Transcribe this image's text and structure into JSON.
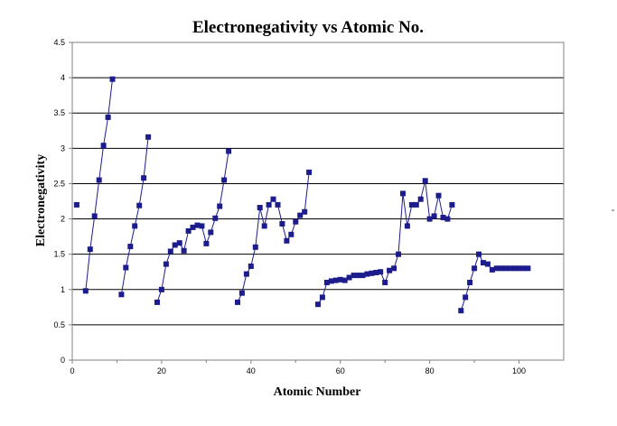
{
  "chart_data": {
    "type": "line",
    "title": "Electronegativity vs Atomic No.",
    "xlabel": "Atomic Number",
    "ylabel": "Electronegativity",
    "xlim": [
      0,
      110
    ],
    "ylim": [
      0,
      4.5
    ],
    "x_ticks": [
      0,
      20,
      40,
      60,
      80,
      100
    ],
    "y_ticks": [
      0,
      0.5,
      1,
      1.5,
      2,
      2.5,
      3,
      3.5,
      4,
      4.5
    ],
    "x_tick_labels": [
      "0",
      "20",
      "40",
      "60",
      "80",
      "100"
    ],
    "y_tick_labels": [
      "0",
      "0.5",
      "1",
      "1.5",
      "2",
      "2.5",
      "3",
      "3.5",
      "4",
      "4.5"
    ],
    "grid": "horizontal",
    "legend": "none",
    "colors": {
      "series": "#1c1c8c",
      "grid": "#000000",
      "axis": "#808080"
    },
    "series": [
      {
        "segments": [
          [
            [
              1,
              2.2
            ]
          ],
          [
            [
              3,
              0.98
            ],
            [
              4,
              1.57
            ],
            [
              5,
              2.04
            ],
            [
              6,
              2.55
            ],
            [
              7,
              3.04
            ],
            [
              8,
              3.44
            ],
            [
              9,
              3.98
            ]
          ],
          [
            [
              11,
              0.93
            ],
            [
              12,
              1.31
            ],
            [
              13,
              1.61
            ],
            [
              14,
              1.9
            ],
            [
              15,
              2.19
            ],
            [
              16,
              2.58
            ],
            [
              17,
              3.16
            ]
          ],
          [
            [
              19,
              0.82
            ],
            [
              20,
              1.0
            ],
            [
              21,
              1.36
            ],
            [
              22,
              1.54
            ],
            [
              23,
              1.63
            ],
            [
              24,
              1.66
            ],
            [
              25,
              1.55
            ],
            [
              26,
              1.83
            ],
            [
              27,
              1.88
            ],
            [
              28,
              1.91
            ],
            [
              29,
              1.9
            ],
            [
              30,
              1.65
            ],
            [
              31,
              1.81
            ],
            [
              32,
              2.01
            ],
            [
              33,
              2.18
            ],
            [
              34,
              2.55
            ],
            [
              35,
              2.96
            ]
          ],
          [
            [
              37,
              0.82
            ],
            [
              38,
              0.95
            ],
            [
              39,
              1.22
            ],
            [
              40,
              1.33
            ],
            [
              41,
              1.6
            ],
            [
              42,
              2.16
            ],
            [
              43,
              1.9
            ],
            [
              44,
              2.2
            ],
            [
              45,
              2.28
            ],
            [
              46,
              2.2
            ],
            [
              47,
              1.93
            ],
            [
              48,
              1.69
            ],
            [
              49,
              1.78
            ],
            [
              50,
              1.96
            ],
            [
              51,
              2.05
            ],
            [
              52,
              2.1
            ],
            [
              53,
              2.66
            ]
          ],
          [
            [
              55,
              0.79
            ],
            [
              56,
              0.89
            ],
            [
              57,
              1.1
            ],
            [
              58,
              1.12
            ],
            [
              59,
              1.13
            ],
            [
              60,
              1.14
            ],
            [
              61,
              1.13
            ],
            [
              62,
              1.17
            ],
            [
              63,
              1.2
            ],
            [
              64,
              1.2
            ],
            [
              65,
              1.2
            ],
            [
              66,
              1.22
            ],
            [
              67,
              1.23
            ],
            [
              68,
              1.24
            ],
            [
              69,
              1.25
            ],
            [
              70,
              1.1
            ],
            [
              71,
              1.27
            ],
            [
              72,
              1.3
            ],
            [
              73,
              1.5
            ],
            [
              74,
              2.36
            ],
            [
              75,
              1.9
            ],
            [
              76,
              2.2
            ],
            [
              77,
              2.2
            ],
            [
              78,
              2.28
            ],
            [
              79,
              2.54
            ],
            [
              80,
              2.0
            ],
            [
              81,
              2.04
            ],
            [
              82,
              2.33
            ],
            [
              83,
              2.02
            ],
            [
              84,
              2.0
            ],
            [
              85,
              2.2
            ]
          ],
          [
            [
              87,
              0.7
            ],
            [
              88,
              0.89
            ],
            [
              89,
              1.1
            ],
            [
              90,
              1.3
            ],
            [
              91,
              1.5
            ],
            [
              92,
              1.38
            ],
            [
              93,
              1.36
            ],
            [
              94,
              1.28
            ],
            [
              95,
              1.3
            ],
            [
              96,
              1.3
            ],
            [
              97,
              1.3
            ],
            [
              98,
              1.3
            ],
            [
              99,
              1.3
            ],
            [
              100,
              1.3
            ],
            [
              101,
              1.3
            ],
            [
              102,
              1.3
            ]
          ]
        ]
      }
    ]
  }
}
